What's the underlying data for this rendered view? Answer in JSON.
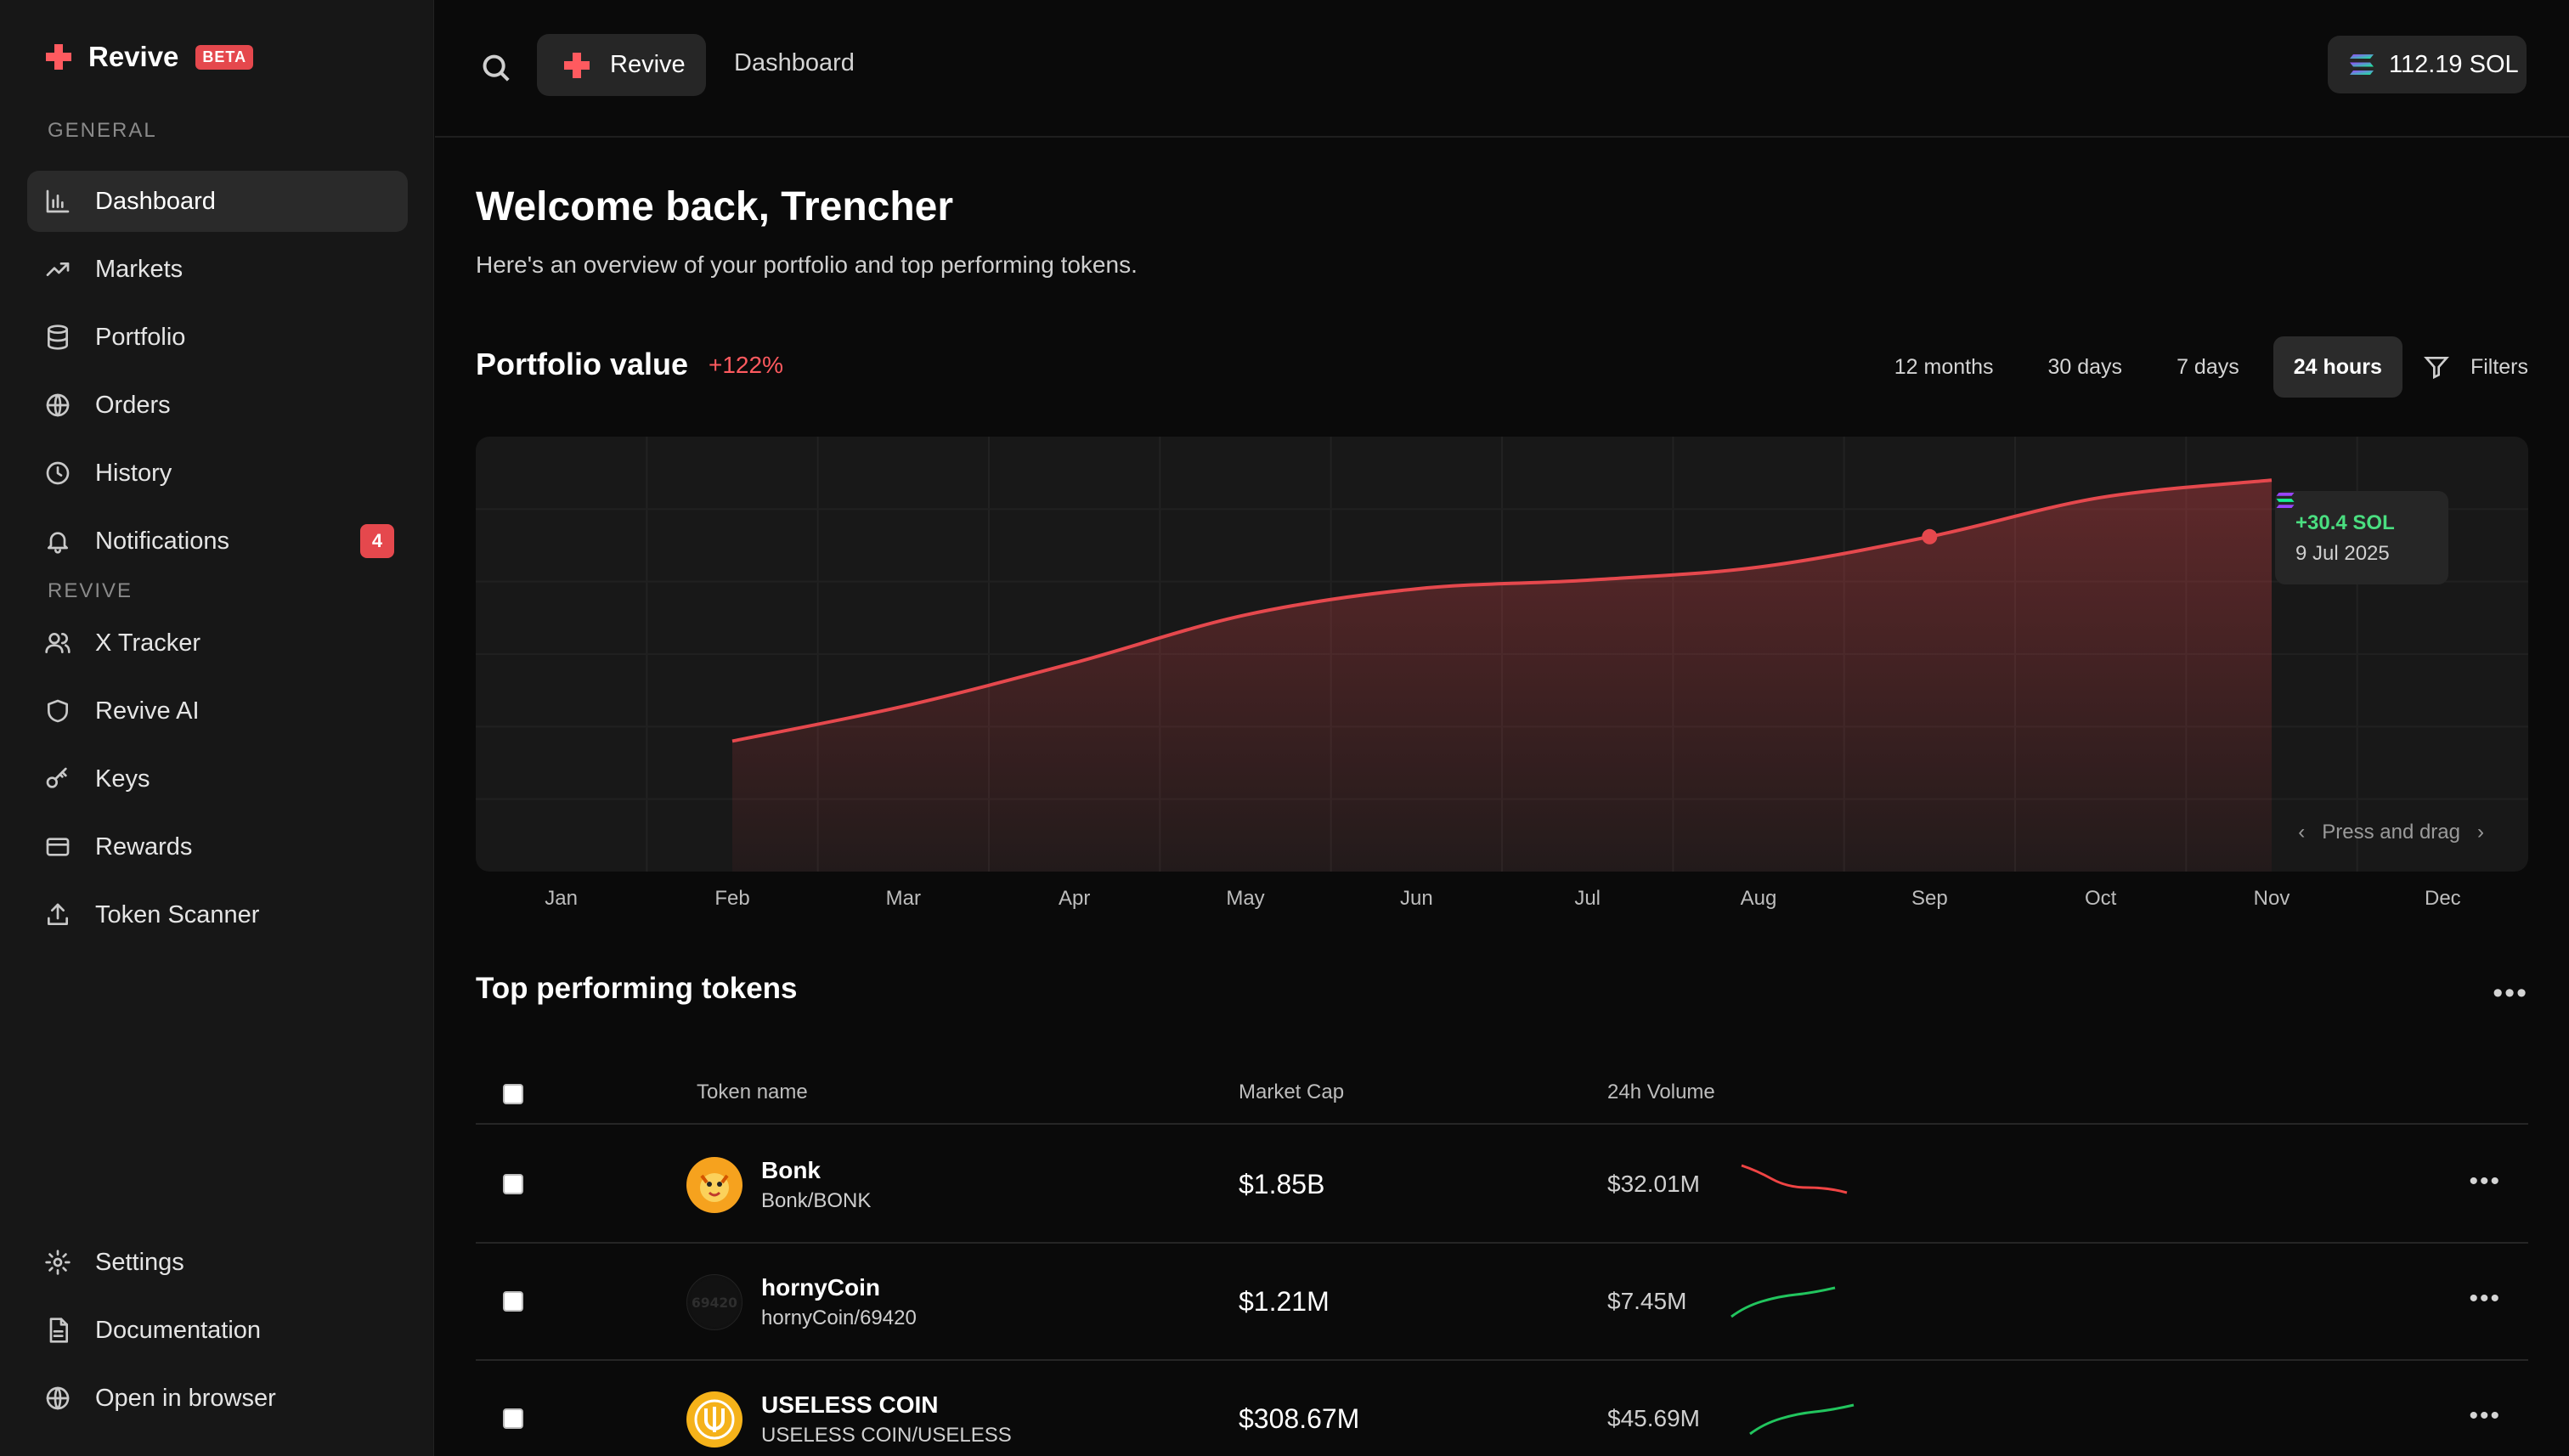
{
  "brand": {
    "name": "Revive",
    "badge": "BETA",
    "accent": "#e5484d"
  },
  "sidebar": {
    "section_general": "GENERAL",
    "section_revive": "REVIVE",
    "items": [
      {
        "label": "Dashboard",
        "icon": "bar-chart-icon",
        "active": true
      },
      {
        "label": "Markets",
        "icon": "trending-up-icon"
      },
      {
        "label": "Portfolio",
        "icon": "database-icon"
      },
      {
        "label": "Orders",
        "icon": "globe-icon"
      },
      {
        "label": "History",
        "icon": "clock-icon"
      },
      {
        "label": "Notifications",
        "icon": "bell-icon",
        "badge": "4"
      },
      {
        "label": "X Tracker",
        "icon": "users-icon"
      },
      {
        "label": "Revive AI",
        "icon": "shield-icon"
      },
      {
        "label": "Keys",
        "icon": "key-icon"
      },
      {
        "label": "Rewards",
        "icon": "credit-card-icon"
      },
      {
        "label": "Token Scanner",
        "icon": "upload-icon"
      }
    ],
    "footer": [
      {
        "label": "Settings",
        "icon": "gear-icon"
      },
      {
        "label": "Documentation",
        "icon": "file-text-icon"
      },
      {
        "label": "Open in browser",
        "icon": "globe-icon"
      }
    ]
  },
  "topbar": {
    "pill_label": "Revive",
    "breadcrumb": "Dashboard",
    "balance": "112.19 SOL"
  },
  "main": {
    "title": "Welcome back, Trencher",
    "subtitle": "Here's an overview of your portfolio and top performing tokens.",
    "portfolio_title": "Portfolio value",
    "portfolio_change": "+122%",
    "ranges": [
      "12 months",
      "30 days",
      "7 days",
      "24 hours"
    ],
    "active_range": "24 hours",
    "filters_label": "Filters",
    "tooltip": {
      "value": "+30.4 SOL",
      "date": "9 Jul 2025"
    },
    "drag_hint": "Press and drag",
    "tokens_title": "Top performing tokens",
    "table_headers": {
      "name": "Token name",
      "mcap": "Market Cap",
      "volume": "24h Volume"
    },
    "tokens": [
      {
        "name": "Bonk",
        "pair": "Bonk/BONK",
        "mcap": "$1.85B",
        "volume": "$32.01M",
        "trend": "down",
        "spark": [
          10,
          6,
          4,
          2
        ]
      },
      {
        "name": "hornyCoin",
        "pair": "hornyCoin/69420",
        "mcap": "$1.21M",
        "volume": "$7.45M",
        "trend": "up",
        "spark": [
          1,
          5,
          7,
          9
        ]
      },
      {
        "name": "USELESS COIN",
        "pair": "USELESS COIN/USELESS",
        "mcap": "$308.67M",
        "volume": "$45.69M",
        "trend": "up",
        "spark": [
          1,
          5,
          7,
          9
        ]
      }
    ]
  },
  "chart_data": {
    "type": "area",
    "x": [
      "Feb",
      "Mar",
      "Apr",
      "May",
      "Jun",
      "Jul",
      "Aug",
      "Sep",
      "Oct",
      "Nov"
    ],
    "values": [
      0.3,
      0.38,
      0.48,
      0.59,
      0.65,
      0.67,
      0.7,
      0.77,
      0.86,
      0.9
    ],
    "tick_labels": [
      "Jan",
      "Feb",
      "Mar",
      "Apr",
      "May",
      "Jun",
      "Jul",
      "Aug",
      "Sep",
      "Oct",
      "Nov",
      "Dec"
    ],
    "highlight": {
      "x": "Sep",
      "label": "+30.4 SOL"
    },
    "grid": true,
    "color": "#e5484d"
  }
}
